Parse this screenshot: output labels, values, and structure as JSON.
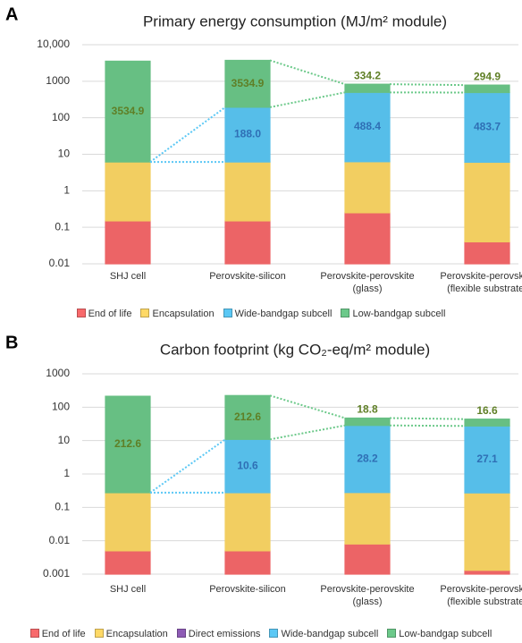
{
  "chart_data": [
    {
      "type": "stacked_bar",
      "panel_label": "A",
      "title": "Primary energy consumption (MJ/m² module)",
      "log": true,
      "categories": [
        "SHJ cell",
        "Perovskite-silicon",
        "Perovskite-perovskite\n(glass)",
        "Perovskite-perovskite\n(flexible substrate)"
      ],
      "ylim": [
        0.01,
        10000
      ],
      "yticks": [
        0.01,
        0.1,
        1,
        10,
        100,
        1000,
        {
          "value": 10000,
          "label": "10,000"
        }
      ],
      "series": [
        {
          "name": "End of life",
          "color": "#f8696b",
          "values": [
            0.15,
            0.15,
            0.25,
            0.04
          ]
        },
        {
          "name": "Encapsulation",
          "color": "#ffd966",
          "values": [
            6,
            6,
            6,
            6
          ]
        },
        {
          "name": "Wide-bandgap subcell",
          "color": "#5bc8f5",
          "label_color": "#2f6fb5",
          "values": [
            null,
            188.0,
            488.4,
            483.7
          ],
          "value_labels": [
            null,
            "188.0",
            "488.4",
            "483.7"
          ]
        },
        {
          "name": "Low-bandgap subcell",
          "color": "#6cc98a",
          "label_color": "#5f7f26",
          "values": [
            3534.9,
            3534.9,
            334.2,
            294.9
          ],
          "value_labels": [
            "3534.9",
            "3534.9",
            "334.2",
            "294.9"
          ]
        }
      ]
    },
    {
      "type": "stacked_bar",
      "panel_label": "B",
      "title": "Carbon footprint (kg CO₂-eq/m² module)",
      "log": true,
      "categories": [
        "SHJ cell",
        "Perovskite-silicon",
        "Perovskite-perovskite\n(glass)",
        "Perovskite-perovskite\n(flexible substrate)"
      ],
      "ylim": [
        0.001,
        1000
      ],
      "yticks": [
        0.001,
        0.01,
        0.1,
        1,
        10,
        100,
        1000
      ],
      "series": [
        {
          "name": "End of life",
          "color": "#f8696b",
          "values": [
            0.005,
            0.005,
            0.008,
            0.0013
          ]
        },
        {
          "name": "Encapsulation",
          "color": "#ffd966",
          "values": [
            0.27,
            0.27,
            0.27,
            0.27
          ]
        },
        {
          "name": "Direct emissions",
          "color": "#8e5bb5",
          "values": [
            0,
            0,
            0,
            0
          ]
        },
        {
          "name": "Wide-bandgap subcell",
          "color": "#5bc8f5",
          "label_color": "#2f6fb5",
          "values": [
            null,
            10.6,
            28.2,
            27.1
          ],
          "value_labels": [
            null,
            "10.6",
            "28.2",
            "27.1"
          ]
        },
        {
          "name": "Low-bandgap subcell",
          "color": "#6cc98a",
          "label_color": "#5f7f26",
          "values": [
            212.6,
            212.6,
            18.8,
            16.6
          ],
          "value_labels": [
            "212.6",
            "212.6",
            "18.8",
            "16.6"
          ]
        }
      ]
    }
  ]
}
